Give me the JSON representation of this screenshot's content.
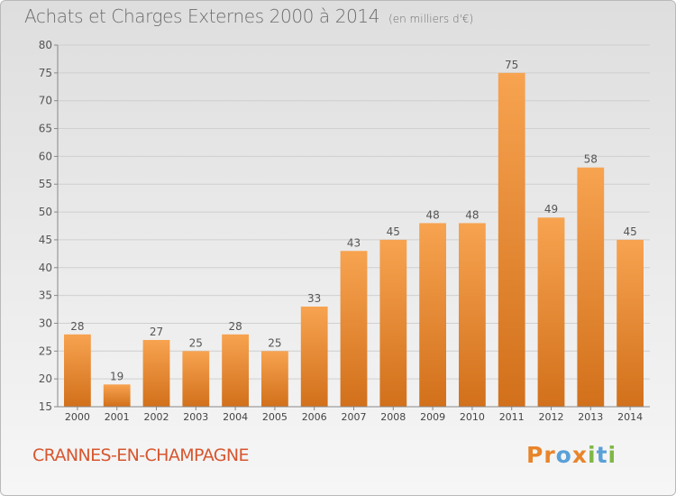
{
  "chart_data": {
    "type": "bar",
    "title": "Achats et Charges Externes 2000 à 2014",
    "subtitle": "(en milliers d'€)",
    "categories": [
      "2000",
      "2001",
      "2002",
      "2003",
      "2004",
      "2005",
      "2006",
      "2007",
      "2008",
      "2009",
      "2010",
      "2011",
      "2012",
      "2013",
      "2014"
    ],
    "values": [
      28,
      19,
      27,
      25,
      28,
      25,
      33,
      43,
      45,
      48,
      48,
      75,
      49,
      58,
      45
    ],
    "ylim": [
      15,
      80
    ],
    "yticks": [
      15,
      20,
      25,
      30,
      35,
      40,
      45,
      50,
      55,
      60,
      65,
      70,
      75,
      80
    ],
    "xlabel": "",
    "ylabel": "",
    "grid": true,
    "bar_color_top": "#f7a350",
    "bar_color_bottom": "#d2701b"
  },
  "footer": {
    "commune": "CRANNES-EN-CHAMPAGNE",
    "logo_letters": [
      "P",
      "r",
      "o",
      "x",
      "i",
      "t",
      "i"
    ],
    "logo_colors": [
      "#e8842a",
      "#e8842a",
      "#5aa0d8",
      "#e8842a",
      "#7fb845",
      "#5aa0d8",
      "#7fb845"
    ]
  }
}
